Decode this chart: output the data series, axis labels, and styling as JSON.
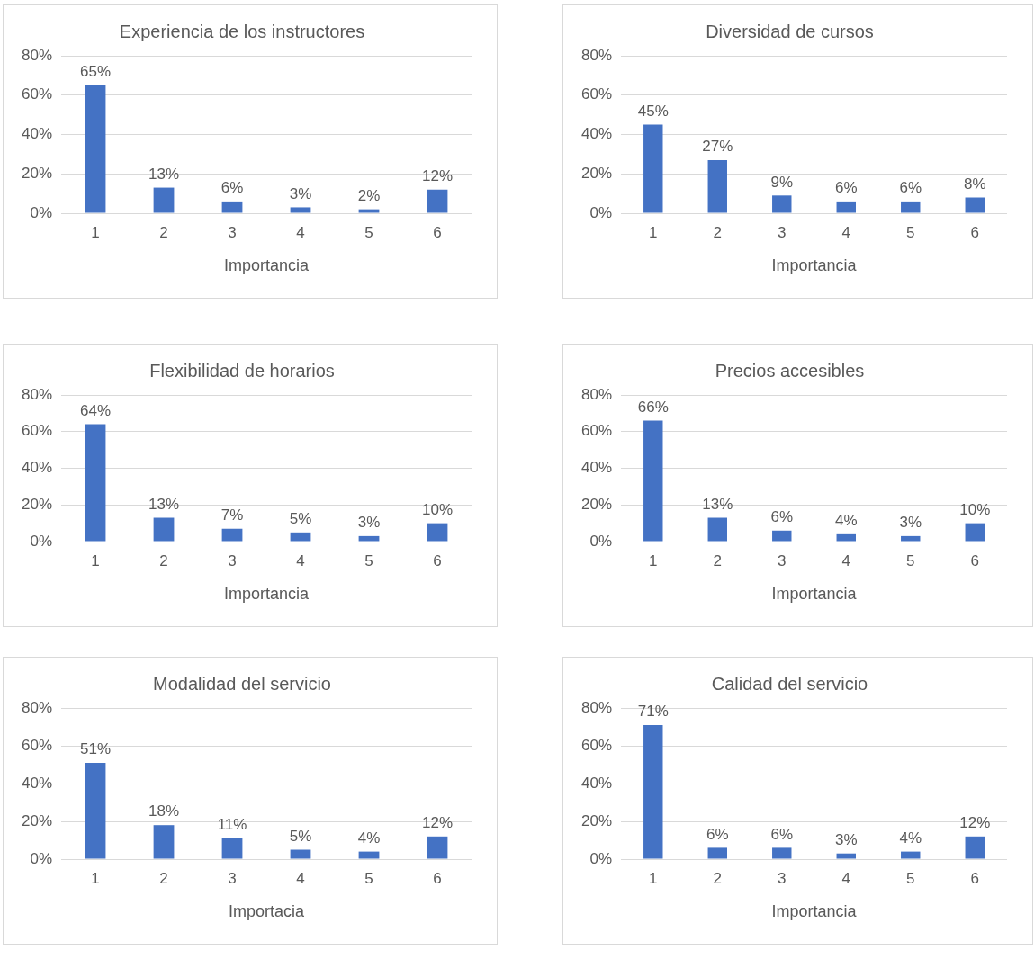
{
  "chart_data": [
    {
      "type": "bar",
      "title": "Experiencia de los instructores",
      "xlabel": "Importancia",
      "categories": [
        "1",
        "2",
        "3",
        "4",
        "5",
        "6"
      ],
      "series": [
        {
          "color": "#4472c4",
          "values": [
            65,
            13,
            6,
            3,
            2,
            12
          ],
          "value_labels": [
            "65%",
            "13%",
            "6%",
            "3%",
            "2%",
            "12%"
          ]
        }
      ],
      "ylim": [
        0,
        80
      ],
      "yticks": [
        {
          "value": 0,
          "label": "0%"
        },
        {
          "value": 20,
          "label": "20%"
        },
        {
          "value": 40,
          "label": "40%"
        },
        {
          "value": 60,
          "label": "60%"
        },
        {
          "value": 80,
          "label": "80%"
        }
      ],
      "grid": "y",
      "legend": false
    },
    {
      "type": "bar",
      "title": "Diversidad de cursos",
      "xlabel": "Importancia",
      "categories": [
        "1",
        "2",
        "3",
        "4",
        "5",
        "6"
      ],
      "series": [
        {
          "color": "#4472c4",
          "values": [
            45,
            27,
            9,
            6,
            6,
            8
          ],
          "value_labels": [
            "45%",
            "27%",
            "9%",
            "6%",
            "6%",
            "8%"
          ]
        }
      ],
      "ylim": [
        0,
        80
      ],
      "yticks": [
        {
          "value": 0,
          "label": "0%"
        },
        {
          "value": 20,
          "label": "20%"
        },
        {
          "value": 40,
          "label": "40%"
        },
        {
          "value": 60,
          "label": "60%"
        },
        {
          "value": 80,
          "label": "80%"
        }
      ],
      "grid": "y",
      "legend": false
    },
    {
      "type": "bar",
      "title": "Flexibilidad de horarios",
      "xlabel": "Importancia",
      "categories": [
        "1",
        "2",
        "3",
        "4",
        "5",
        "6"
      ],
      "series": [
        {
          "color": "#4472c4",
          "values": [
            64,
            13,
            7,
            5,
            3,
            10
          ],
          "value_labels": [
            "64%",
            "13%",
            "7%",
            "5%",
            "3%",
            "10%"
          ]
        }
      ],
      "ylim": [
        0,
        80
      ],
      "yticks": [
        {
          "value": 0,
          "label": "0%"
        },
        {
          "value": 20,
          "label": "20%"
        },
        {
          "value": 40,
          "label": "40%"
        },
        {
          "value": 60,
          "label": "60%"
        },
        {
          "value": 80,
          "label": "80%"
        }
      ],
      "grid": "y",
      "legend": false
    },
    {
      "type": "bar",
      "title": "Precios accesibles",
      "xlabel": "Importancia",
      "categories": [
        "1",
        "2",
        "3",
        "4",
        "5",
        "6"
      ],
      "series": [
        {
          "color": "#4472c4",
          "values": [
            66,
            13,
            6,
            4,
            3,
            10
          ],
          "value_labels": [
            "66%",
            "13%",
            "6%",
            "4%",
            "3%",
            "10%"
          ]
        }
      ],
      "ylim": [
        0,
        80
      ],
      "yticks": [
        {
          "value": 0,
          "label": "0%"
        },
        {
          "value": 20,
          "label": "20%"
        },
        {
          "value": 40,
          "label": "40%"
        },
        {
          "value": 60,
          "label": "60%"
        },
        {
          "value": 80,
          "label": "80%"
        }
      ],
      "grid": "y",
      "legend": false
    },
    {
      "type": "bar",
      "title": "Modalidad del servicio",
      "xlabel": "Importacia",
      "categories": [
        "1",
        "2",
        "3",
        "4",
        "5",
        "6"
      ],
      "series": [
        {
          "color": "#4472c4",
          "values": [
            51,
            18,
            11,
            5,
            4,
            12
          ],
          "value_labels": [
            "51%",
            "18%",
            "11%",
            "5%",
            "4%",
            "12%"
          ]
        }
      ],
      "ylim": [
        0,
        80
      ],
      "yticks": [
        {
          "value": 0,
          "label": "0%"
        },
        {
          "value": 20,
          "label": "20%"
        },
        {
          "value": 40,
          "label": "40%"
        },
        {
          "value": 60,
          "label": "60%"
        },
        {
          "value": 80,
          "label": "80%"
        }
      ],
      "grid": "y",
      "legend": false
    },
    {
      "type": "bar",
      "title": "Calidad del servicio",
      "xlabel": "Importancia",
      "categories": [
        "1",
        "2",
        "3",
        "4",
        "5",
        "6"
      ],
      "series": [
        {
          "color": "#4472c4",
          "values": [
            71,
            6,
            6,
            3,
            4,
            12
          ],
          "value_labels": [
            "71%",
            "6%",
            "6%",
            "3%",
            "4%",
            "12%"
          ]
        }
      ],
      "ylim": [
        0,
        80
      ],
      "yticks": [
        {
          "value": 0,
          "label": "0%"
        },
        {
          "value": 20,
          "label": "20%"
        },
        {
          "value": 40,
          "label": "40%"
        },
        {
          "value": 60,
          "label": "60%"
        },
        {
          "value": 80,
          "label": "80%"
        }
      ],
      "grid": "y",
      "legend": false
    }
  ]
}
